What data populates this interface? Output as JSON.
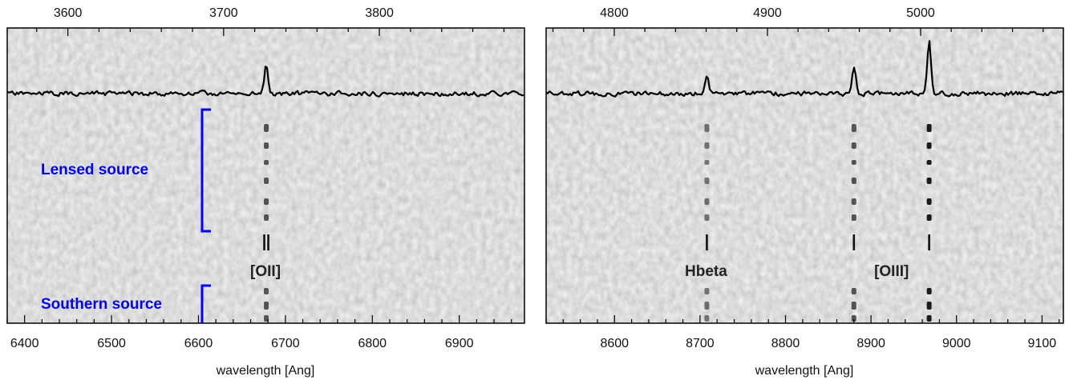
{
  "colors": {
    "annotation": "#0000ff",
    "spectrum": "#000000",
    "frame": "#000000",
    "marker": "#111111"
  },
  "chart_data": [
    {
      "type": "spectrum-2d",
      "panel": "left",
      "xlabel": "wavelength [Ang]",
      "xlim_observed": [
        6380,
        6975
      ],
      "x_ticks_observed": [
        6400,
        6500,
        6600,
        6700,
        6800,
        6900
      ],
      "x_ticks_observed_labels": [
        "6400",
        "6500",
        "6600",
        "6700",
        "6800",
        "6900"
      ],
      "top_axis_rest": [
        3600,
        3700,
        3800
      ],
      "top_axis_rest_labels": [
        "3600",
        "3700",
        "3800"
      ],
      "redshift_factor": 1.7916,
      "emission_lines": [
        {
          "label": "[OII]",
          "observed": 6678,
          "marker": "double",
          "peak": 0.55
        }
      ],
      "regions": [
        {
          "label": "Lensed source"
        },
        {
          "label": "Southern source"
        }
      ]
    },
    {
      "type": "spectrum-2d",
      "panel": "right",
      "xlabel": "wavelength [Ang]",
      "xlim_observed": [
        8520,
        9125
      ],
      "x_ticks_observed": [
        8600,
        8700,
        8800,
        8900,
        9000,
        9100
      ],
      "x_ticks_observed_labels": [
        "8600",
        "8700",
        "8800",
        "8900",
        "9000",
        "9100"
      ],
      "top_axis_rest": [
        4800,
        4900,
        5000
      ],
      "top_axis_rest_labels": [
        "4800",
        "4900",
        "5000"
      ],
      "redshift_factor": 1.7916,
      "emission_lines": [
        {
          "label": "Hbeta",
          "observed": 8708,
          "marker": "single",
          "peak": 0.3
        },
        {
          "label": "",
          "observed": 8880,
          "marker": "single",
          "peak": 0.55
        },
        {
          "label": "[OIII]",
          "observed": 8968,
          "marker": "single",
          "peak": 1.0
        }
      ]
    }
  ]
}
